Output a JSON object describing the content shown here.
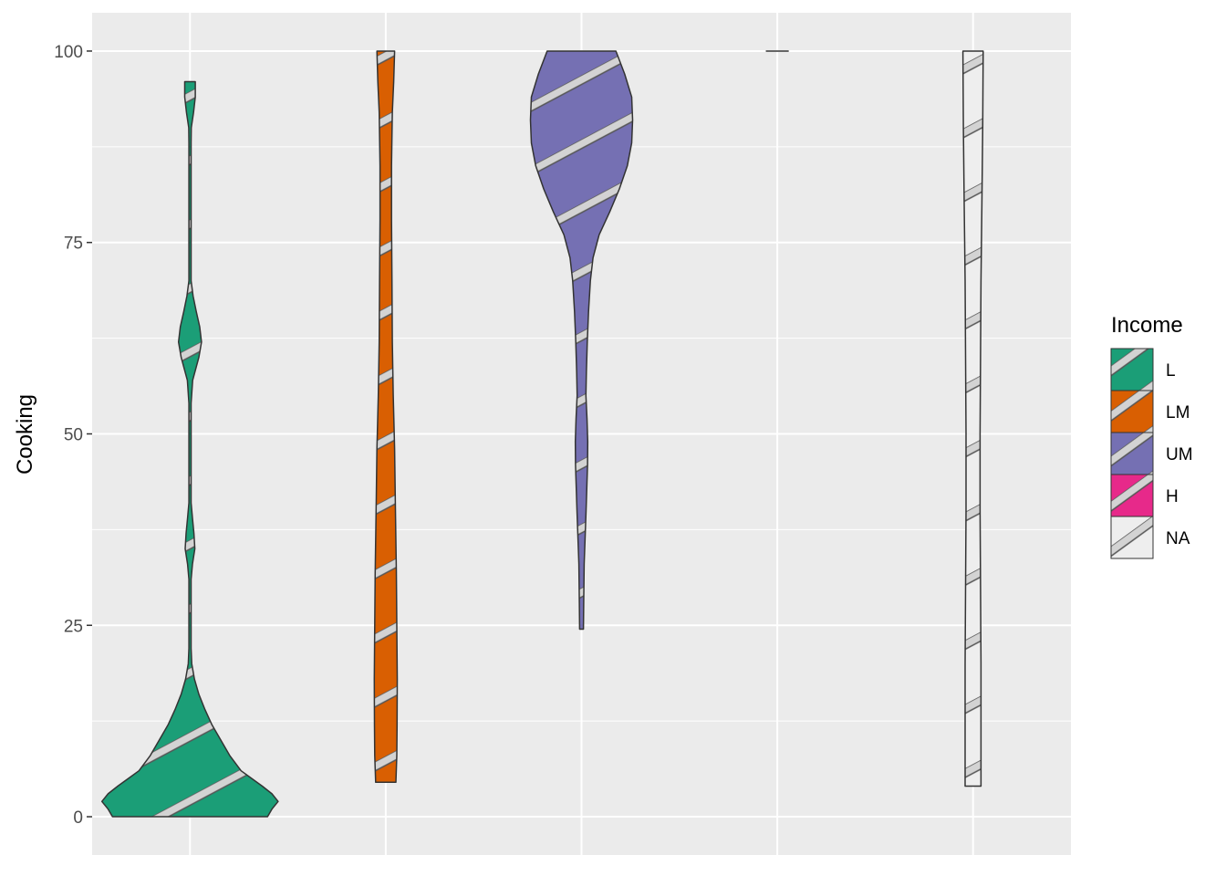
{
  "chart_data": {
    "type": "violin",
    "ylabel": "Cooking",
    "xlabel": "",
    "ylim": [
      -5,
      105
    ],
    "yticks": [
      0,
      25,
      50,
      75,
      100
    ],
    "grid": true,
    "pattern": "stripe",
    "pattern_fill": "#d3d3d3",
    "outline_color": "#333333",
    "legend": {
      "title": "Income",
      "position": "right",
      "entries": [
        {
          "label": "L",
          "color": "#1b9e77"
        },
        {
          "label": "LM",
          "color": "#d95f02"
        },
        {
          "label": "UM",
          "color": "#7570b3"
        },
        {
          "label": "H",
          "color": "#e7298a"
        },
        {
          "label": "NA",
          "color": "#eeeeee"
        }
      ]
    },
    "series": [
      {
        "group": "L",
        "color": "#1b9e77",
        "min": 0,
        "max": 96,
        "profile": [
          [
            0,
            0.88
          ],
          [
            1,
            0.93
          ],
          [
            2,
            1.0
          ],
          [
            3,
            0.93
          ],
          [
            4,
            0.82
          ],
          [
            5,
            0.7
          ],
          [
            6,
            0.58
          ],
          [
            8,
            0.45
          ],
          [
            10,
            0.35
          ],
          [
            12,
            0.25
          ],
          [
            14,
            0.17
          ],
          [
            16,
            0.1
          ],
          [
            18,
            0.05
          ],
          [
            20,
            0.02
          ],
          [
            22,
            0.008
          ],
          [
            25,
            0.006
          ],
          [
            28,
            0.006
          ],
          [
            31,
            0.012
          ],
          [
            33,
            0.028
          ],
          [
            35,
            0.055
          ],
          [
            37,
            0.045
          ],
          [
            39,
            0.028
          ],
          [
            41,
            0.012
          ],
          [
            44,
            0.006
          ],
          [
            50,
            0.006
          ],
          [
            54,
            0.01
          ],
          [
            57,
            0.03
          ],
          [
            60,
            0.1
          ],
          [
            62,
            0.13
          ],
          [
            64,
            0.11
          ],
          [
            66,
            0.07
          ],
          [
            68,
            0.035
          ],
          [
            70,
            0.012
          ],
          [
            73,
            0.006
          ],
          [
            80,
            0.006
          ],
          [
            88,
            0.008
          ],
          [
            90,
            0.015
          ],
          [
            92,
            0.04
          ],
          [
            94,
            0.06
          ],
          [
            96,
            0.06
          ]
        ]
      },
      {
        "group": "LM",
        "color": "#d95f02",
        "min": 4.5,
        "max": 100,
        "profile": [
          [
            4.5,
            0.115
          ],
          [
            8,
            0.125
          ],
          [
            12,
            0.128
          ],
          [
            18,
            0.13
          ],
          [
            25,
            0.125
          ],
          [
            32,
            0.12
          ],
          [
            40,
            0.11
          ],
          [
            48,
            0.1
          ],
          [
            55,
            0.085
          ],
          [
            62,
            0.075
          ],
          [
            70,
            0.07
          ],
          [
            78,
            0.065
          ],
          [
            85,
            0.065
          ],
          [
            92,
            0.075
          ],
          [
            96,
            0.09
          ],
          [
            100,
            0.1
          ]
        ]
      },
      {
        "group": "UM",
        "color": "#7570b3",
        "min": 24.5,
        "max": 100,
        "profile": [
          [
            24.5,
            0.022
          ],
          [
            28,
            0.025
          ],
          [
            33,
            0.03
          ],
          [
            37,
            0.042
          ],
          [
            40,
            0.052
          ],
          [
            43,
            0.06
          ],
          [
            46,
            0.068
          ],
          [
            49,
            0.07
          ],
          [
            52,
            0.062
          ],
          [
            55,
            0.05
          ],
          [
            58,
            0.055
          ],
          [
            62,
            0.065
          ],
          [
            66,
            0.08
          ],
          [
            70,
            0.1
          ],
          [
            73,
            0.13
          ],
          [
            76,
            0.2
          ],
          [
            79,
            0.32
          ],
          [
            82,
            0.43
          ],
          [
            85,
            0.52
          ],
          [
            88,
            0.57
          ],
          [
            91,
            0.58
          ],
          [
            94,
            0.57
          ],
          [
            97,
            0.49
          ],
          [
            100,
            0.39
          ]
        ]
      },
      {
        "group": "H",
        "color": "#e7298a",
        "min": 100,
        "max": 100,
        "profile": [
          [
            100,
            0.13
          ]
        ]
      },
      {
        "group": "NA",
        "color": "#eeeeee",
        "min": 4,
        "max": 100,
        "profile": [
          [
            4,
            0.09
          ],
          [
            10,
            0.09
          ],
          [
            20,
            0.09
          ],
          [
            30,
            0.085
          ],
          [
            40,
            0.08
          ],
          [
            50,
            0.08
          ],
          [
            60,
            0.085
          ],
          [
            70,
            0.09
          ],
          [
            80,
            0.1
          ],
          [
            90,
            0.11
          ],
          [
            100,
            0.115
          ]
        ]
      }
    ]
  }
}
